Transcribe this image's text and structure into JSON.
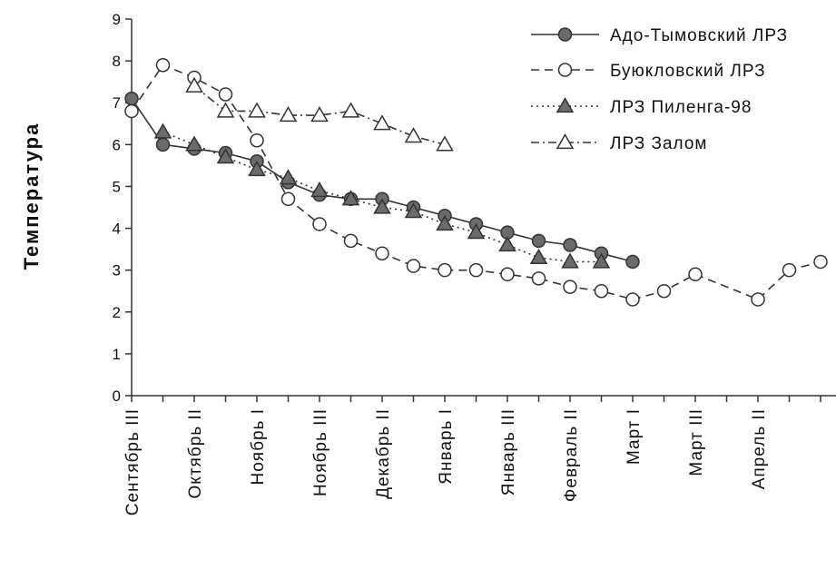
{
  "chart_data": {
    "type": "line",
    "title": "",
    "ylabel": "Температура",
    "xlabel": "",
    "ylim": [
      0,
      9
    ],
    "y_ticks": [
      0,
      1,
      2,
      3,
      4,
      5,
      6,
      7,
      8,
      9
    ],
    "x_positions": 24,
    "x_tick_labels": [
      {
        "index": 0,
        "label": "Сентябрь III"
      },
      {
        "index": 2,
        "label": "Октябрь II"
      },
      {
        "index": 4,
        "label": "Ноябрь I"
      },
      {
        "index": 6,
        "label": "Ноябрь III"
      },
      {
        "index": 8,
        "label": "Декабрь II"
      },
      {
        "index": 10,
        "label": "Январь I"
      },
      {
        "index": 12,
        "label": "Январь III"
      },
      {
        "index": 14,
        "label": "Февраль II"
      },
      {
        "index": 16,
        "label": "Март I"
      },
      {
        "index": 18,
        "label": "Март III"
      },
      {
        "index": 20,
        "label": "Апрель II"
      }
    ],
    "legend_position": "top-right",
    "grid": false,
    "series": [
      {
        "name": "Адо-Тымовский ЛРЗ",
        "marker": "filled-circle",
        "line": "solid",
        "color": "#333333",
        "fill": "#6b6b6b",
        "values": [
          7.1,
          6.0,
          5.9,
          5.8,
          5.6,
          5.1,
          4.8,
          4.7,
          4.7,
          4.5,
          4.3,
          4.1,
          3.9,
          3.7,
          3.6,
          3.4,
          3.2,
          null,
          null,
          null,
          null,
          null,
          null,
          null
        ]
      },
      {
        "name": "Буюкловский ЛРЗ",
        "marker": "open-circle",
        "line": "dashed",
        "color": "#333333",
        "fill": "#ffffff",
        "values": [
          6.8,
          7.9,
          7.6,
          7.2,
          6.1,
          4.7,
          4.1,
          3.7,
          3.4,
          3.1,
          3.0,
          3.0,
          2.9,
          2.8,
          2.6,
          2.5,
          2.3,
          2.5,
          2.9,
          null,
          2.3,
          3.0,
          3.2,
          null
        ]
      },
      {
        "name": "ЛРЗ Пиленга-98",
        "marker": "filled-triangle",
        "line": "dotted",
        "color": "#333333",
        "fill": "#6b6b6b",
        "values": [
          null,
          6.3,
          6.0,
          5.7,
          5.4,
          5.2,
          4.9,
          4.7,
          4.5,
          4.4,
          4.1,
          3.9,
          3.6,
          3.3,
          3.2,
          3.2,
          null,
          null,
          null,
          null,
          null,
          null,
          null,
          null
        ]
      },
      {
        "name": "ЛРЗ Залом",
        "marker": "open-triangle",
        "line": "dash-dot",
        "color": "#333333",
        "fill": "#ffffff",
        "values": [
          null,
          null,
          7.4,
          6.8,
          6.8,
          6.7,
          6.7,
          6.8,
          6.5,
          6.2,
          6.0,
          null,
          null,
          null,
          null,
          null,
          null,
          null,
          null,
          null,
          null,
          null,
          null,
          null
        ]
      }
    ]
  }
}
